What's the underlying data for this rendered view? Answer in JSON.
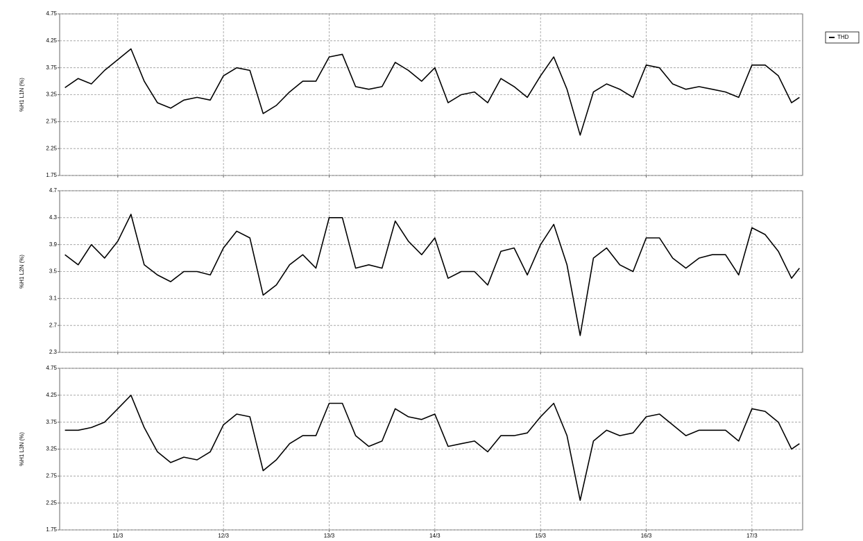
{
  "chart_data": [
    {
      "type": "line",
      "ylabel": "%H1 L1N (%)",
      "legend": "top-right",
      "grid": true,
      "x": [
        10.5,
        10.625,
        10.75,
        10.875,
        11,
        11.125,
        11.25,
        11.375,
        11.5,
        11.625,
        11.75,
        11.875,
        12,
        12.125,
        12.25,
        12.375,
        12.5,
        12.625,
        12.75,
        12.875,
        13,
        13.125,
        13.25,
        13.375,
        13.5,
        13.625,
        13.75,
        13.875,
        14,
        14.125,
        14.25,
        14.375,
        14.5,
        14.625,
        14.75,
        14.875,
        15,
        15.125,
        15.25,
        15.375,
        15.5,
        15.625,
        15.75,
        15.875,
        16,
        16.125,
        16.25,
        16.375,
        16.5,
        16.625,
        16.75,
        16.875,
        17,
        17.125,
        17.25,
        17.375,
        17.45
      ],
      "series": [
        {
          "name": "THD",
          "color": "#000000",
          "values": [
            3.38,
            3.55,
            3.45,
            3.7,
            3.9,
            4.1,
            3.5,
            3.1,
            3.0,
            3.15,
            3.2,
            3.15,
            3.6,
            3.75,
            3.7,
            2.9,
            3.05,
            3.3,
            3.5,
            3.5,
            3.95,
            4.0,
            3.4,
            3.35,
            3.4,
            3.85,
            3.7,
            3.5,
            3.75,
            3.1,
            3.25,
            3.3,
            3.1,
            3.55,
            3.4,
            3.2,
            3.6,
            3.95,
            3.35,
            2.5,
            3.3,
            3.45,
            3.35,
            3.2,
            3.8,
            3.75,
            3.45,
            3.35,
            3.4,
            3.35,
            3.3,
            3.2,
            3.8,
            3.8,
            3.6,
            3.1,
            3.2
          ]
        }
      ],
      "xlim": [
        10.45,
        17.48
      ],
      "xticks": [
        11,
        12,
        13,
        14,
        15,
        16,
        17
      ],
      "ylim": [
        1.75,
        4.75
      ],
      "yticks": [
        1.75,
        2.25,
        2.75,
        3.25,
        3.75,
        4.25,
        4.75
      ]
    },
    {
      "type": "line",
      "ylabel": "%H1 L2N (%)",
      "grid": true,
      "x": [
        10.5,
        10.625,
        10.75,
        10.875,
        11,
        11.125,
        11.25,
        11.375,
        11.5,
        11.625,
        11.75,
        11.875,
        12,
        12.125,
        12.25,
        12.375,
        12.5,
        12.625,
        12.75,
        12.875,
        13,
        13.125,
        13.25,
        13.375,
        13.5,
        13.625,
        13.75,
        13.875,
        14,
        14.125,
        14.25,
        14.375,
        14.5,
        14.625,
        14.75,
        14.875,
        15,
        15.125,
        15.25,
        15.375,
        15.5,
        15.625,
        15.75,
        15.875,
        16,
        16.125,
        16.25,
        16.375,
        16.5,
        16.625,
        16.75,
        16.875,
        17,
        17.125,
        17.25,
        17.375,
        17.45
      ],
      "series": [
        {
          "color": "#000000",
          "values": [
            3.75,
            3.6,
            3.9,
            3.7,
            3.95,
            4.35,
            3.6,
            3.45,
            3.35,
            3.5,
            3.5,
            3.45,
            3.85,
            4.1,
            4.0,
            3.15,
            3.3,
            3.6,
            3.75,
            3.55,
            4.3,
            4.3,
            3.55,
            3.6,
            3.55,
            4.25,
            3.95,
            3.75,
            4.0,
            3.4,
            3.5,
            3.5,
            3.3,
            3.8,
            3.85,
            3.45,
            3.9,
            4.2,
            3.6,
            2.55,
            3.7,
            3.85,
            3.6,
            3.5,
            4.0,
            4.0,
            3.7,
            3.55,
            3.7,
            3.75,
            3.75,
            3.45,
            4.15,
            4.05,
            3.8,
            3.4,
            3.55
          ]
        }
      ],
      "xlim": [
        10.45,
        17.48
      ],
      "xticks": [
        11,
        12,
        13,
        14,
        15,
        16,
        17
      ],
      "ylim": [
        2.3,
        4.7
      ],
      "yticks": [
        2.3,
        2.7,
        3.1,
        3.5,
        3.9,
        4.3,
        4.7
      ]
    },
    {
      "type": "line",
      "ylabel": "%H1 L3N (%)",
      "grid": true,
      "x": [
        10.5,
        10.625,
        10.75,
        10.875,
        11,
        11.125,
        11.25,
        11.375,
        11.5,
        11.625,
        11.75,
        11.875,
        12,
        12.125,
        12.25,
        12.375,
        12.5,
        12.625,
        12.75,
        12.875,
        13,
        13.125,
        13.25,
        13.375,
        13.5,
        13.625,
        13.75,
        13.875,
        14,
        14.125,
        14.25,
        14.375,
        14.5,
        14.625,
        14.75,
        14.875,
        15,
        15.125,
        15.25,
        15.375,
        15.5,
        15.625,
        15.75,
        15.875,
        16,
        16.125,
        16.25,
        16.375,
        16.5,
        16.625,
        16.75,
        16.875,
        17,
        17.125,
        17.25,
        17.375,
        17.45
      ],
      "series": [
        {
          "color": "#000000",
          "values": [
            3.6,
            3.6,
            3.65,
            3.75,
            4.0,
            4.25,
            3.65,
            3.2,
            3.0,
            3.1,
            3.05,
            3.2,
            3.7,
            3.9,
            3.85,
            2.85,
            3.05,
            3.35,
            3.5,
            3.5,
            4.1,
            4.1,
            3.5,
            3.3,
            3.4,
            4.0,
            3.85,
            3.8,
            3.9,
            3.3,
            3.35,
            3.4,
            3.2,
            3.5,
            3.5,
            3.55,
            3.85,
            4.1,
            3.5,
            2.3,
            3.4,
            3.6,
            3.5,
            3.55,
            3.85,
            3.9,
            3.7,
            3.5,
            3.6,
            3.6,
            3.6,
            3.4,
            4.0,
            3.95,
            3.75,
            3.25,
            3.35
          ]
        }
      ],
      "xlim": [
        10.45,
        17.48
      ],
      "xticks": [
        {
          "value": 11,
          "label": "11/3"
        },
        {
          "value": 12,
          "label": "12/3"
        },
        {
          "value": 13,
          "label": "13/3"
        },
        {
          "value": 14,
          "label": "14/3"
        },
        {
          "value": 15,
          "label": "15/3"
        },
        {
          "value": 16,
          "label": "16/3"
        },
        {
          "value": 17,
          "label": "17/3"
        }
      ],
      "ylim": [
        1.75,
        4.75
      ],
      "yticks": [
        1.75,
        2.25,
        2.75,
        3.25,
        3.75,
        4.25,
        4.75
      ]
    }
  ]
}
